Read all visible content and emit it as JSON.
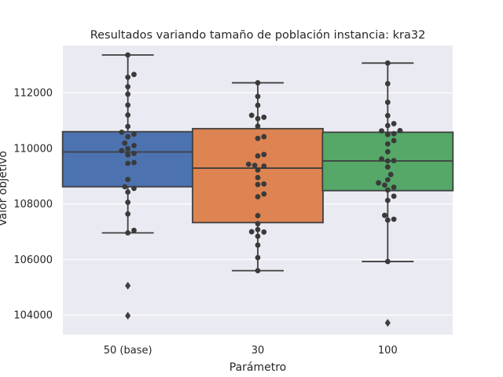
{
  "chart_data": {
    "type": "box",
    "title": "Resultados variando tamaño de población instancia: kra32",
    "xlabel": "Parámetro",
    "ylabel": "Valor objetivo",
    "ylim": [
      103300,
      113700
    ],
    "yticks": [
      104000,
      106000,
      108000,
      110000,
      112000
    ],
    "grid": true,
    "categories": [
      "50 (base)",
      "30",
      "100"
    ],
    "colors": {
      "background": "#EAEAF2",
      "grid": "#FFFFFF",
      "box_edge": "#3F3F3F",
      "points": "#3A3A3A",
      "boxes": [
        "#4C72B0",
        "#DD8452",
        "#55A868"
      ]
    },
    "boxes": [
      {
        "category": "50 (base)",
        "whisker_low": 106960,
        "q1": 108620,
        "median": 109870,
        "q3": 110600,
        "whisker_high": 113360,
        "outliers": [
          105060,
          103980
        ]
      },
      {
        "category": "30",
        "whisker_low": 105600,
        "q1": 107330,
        "median": 109290,
        "q3": 110710,
        "whisker_high": 112360,
        "outliers": []
      },
      {
        "category": "100",
        "whisker_low": 105930,
        "q1": 108480,
        "median": 109550,
        "q3": 110580,
        "whisker_high": 113070,
        "outliers": [
          103720
        ]
      }
    ],
    "points": [
      {
        "category": "50 (base)",
        "values": [
          113360,
          112660,
          112560,
          112220,
          111950,
          111560,
          111200,
          110790,
          110580,
          110510,
          110420,
          110190,
          110100,
          109990,
          109920,
          109820,
          109770,
          109490,
          109460,
          108880,
          108620,
          108560,
          108430,
          108060,
          107640,
          107050,
          106960
        ]
      },
      {
        "category": "30",
        "values": [
          112360,
          111870,
          111550,
          111190,
          111120,
          111070,
          110800,
          110420,
          110360,
          109780,
          109730,
          109430,
          109390,
          109360,
          109220,
          108950,
          108720,
          108700,
          108360,
          108260,
          107580,
          107290,
          107080,
          107000,
          106990,
          106840,
          106520,
          106070,
          105600
        ]
      },
      {
        "category": "100",
        "values": [
          113070,
          112330,
          111660,
          111180,
          110890,
          110820,
          110640,
          110630,
          110530,
          110500,
          110280,
          110160,
          109880,
          109620,
          109560,
          109550,
          109330,
          109060,
          108870,
          108760,
          108680,
          108600,
          108500,
          108280,
          108130,
          107590,
          107450,
          107420,
          105930
        ]
      }
    ]
  }
}
